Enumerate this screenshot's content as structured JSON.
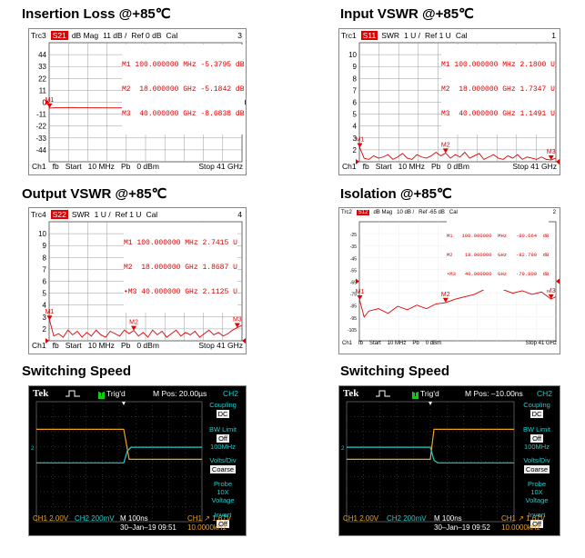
{
  "panels": [
    {
      "id": "il",
      "title": "Insertion Loss @+85℃",
      "trc": "Trc3",
      "sparam": "S21",
      "format": "dB Mag",
      "scale": "11 dB /",
      "ref": "Ref 0 dB",
      "cal": "Cal",
      "index": "3",
      "markers": [
        {
          "name": "M1",
          "freq": "100.000000",
          "unit": "MHz",
          "value": "-5.3795",
          "vunit": "dB"
        },
        {
          "name": "M2",
          "freq": "18.000000",
          "unit": "GHz",
          "value": "-5.1842",
          "vunit": "dB"
        },
        {
          "name": "M3",
          "freq": "40.000000",
          "unit": "GHz",
          "value": "-8.6838",
          "vunit": "dB"
        }
      ],
      "footer_left": [
        "Ch1",
        "fb",
        "Start",
        "10 MHz",
        "Pb",
        "0 dBm"
      ],
      "footer_right": "Stop  41 GHz"
    },
    {
      "id": "ivswr",
      "title": "Input VSWR @+85℃",
      "trc": "Trc1",
      "sparam": "S11",
      "format": "SWR",
      "scale": "1 U /",
      "ref": "Ref 1 U",
      "cal": "Cal",
      "index": "1",
      "markers": [
        {
          "name": "M1",
          "freq": "100.000000",
          "unit": "MHz",
          "value": "2.1800",
          "vunit": "U"
        },
        {
          "name": "M2",
          "freq": "18.000000",
          "unit": "GHz",
          "value": "1.7347",
          "vunit": "U"
        },
        {
          "name": "M3",
          "freq": "40.000000",
          "unit": "GHz",
          "value": "1.1491",
          "vunit": "U"
        }
      ],
      "footer_left": [
        "Ch1",
        "fb",
        "Start",
        "10 MHz",
        "Pb",
        "0 dBm"
      ],
      "footer_right": "Stop  41 GHz"
    },
    {
      "id": "ovswr",
      "title": "Output VSWR @+85℃",
      "trc": "Trc4",
      "sparam": "S22",
      "format": "SWR",
      "scale": "1 U /",
      "ref": "Ref 1 U",
      "cal": "Cal",
      "index": "4",
      "markers": [
        {
          "name": "M1",
          "freq": "100.000000",
          "unit": "MHz",
          "value": "2.7415",
          "vunit": "U"
        },
        {
          "name": "M2",
          "freq": "18.000000",
          "unit": "GHz",
          "value": "1.8687",
          "vunit": "U"
        },
        {
          "name": "•M3",
          "freq": "40.000000",
          "unit": "GHz",
          "value": "2.1125",
          "vunit": "U"
        }
      ],
      "footer_left": [
        "Ch1",
        "fb",
        "Start",
        "10 MHz",
        "Pb",
        "0 dBm"
      ],
      "footer_right": "Stop  41 GHz"
    },
    {
      "id": "iso",
      "title": "Isolation @+85℃",
      "trc": "Trc2",
      "sparam": "S12",
      "format": "dB Mag",
      "scale": "10 dB /",
      "ref": "Ref -65 dB",
      "cal": "Cal",
      "index": "2",
      "markers": [
        {
          "name": "M1",
          "freq": "100.000000",
          "unit": "MHz",
          "value": "-80.664",
          "vunit": "dB"
        },
        {
          "name": "M2",
          "freq": "18.000000",
          "unit": "GHz",
          "value": "-82.790",
          "vunit": "dB"
        },
        {
          "name": "•M3",
          "freq": "40.000000",
          "unit": "GHz",
          "value": "-79.809",
          "vunit": "dB"
        }
      ],
      "footer_left": [
        "Ch1",
        "fb",
        "Start",
        "10 MHz",
        "Pb",
        "0 dBm"
      ],
      "footer_right": "Stop  41 GHz"
    }
  ],
  "chart_data": [
    {
      "type": "line",
      "title": "Insertion Loss @+85℃",
      "xlabel": "",
      "ylabel": "",
      "xlim": [
        0.01,
        41
      ],
      "ylim": [
        -55,
        55
      ],
      "yticks": [
        "44",
        "33",
        "22",
        "11",
        "0",
        "-11",
        "-22",
        "-33",
        "-44"
      ],
      "grid": true,
      "series": [
        {
          "x": [
            0.01,
            2,
            5,
            8,
            12,
            18,
            22,
            26,
            30,
            34,
            38,
            40,
            41
          ],
          "values": [
            -5.4,
            -5.0,
            -4.9,
            -5.1,
            -5.2,
            -5.2,
            -5.6,
            -6.0,
            -6.6,
            -7.2,
            -8.1,
            -8.7,
            -8.8
          ],
          "color": "#e00000"
        }
      ],
      "markers": [
        {
          "label": "M1",
          "x": 0.1,
          "y": -5.38
        },
        {
          "label": "M2",
          "x": 18,
          "y": -5.18
        },
        {
          "label": "M3",
          "x": 40,
          "y": -8.68
        }
      ]
    },
    {
      "type": "line",
      "title": "Input VSWR @+85℃",
      "xlabel": "",
      "ylabel": "",
      "xlim": [
        0.01,
        41
      ],
      "ylim": [
        1,
        11
      ],
      "yticks": [
        "10",
        "9",
        "8",
        "7",
        "6",
        "5",
        "4",
        "3",
        "2"
      ],
      "grid": true,
      "series": [
        {
          "x": [
            0.01,
            0.1,
            1,
            2,
            3,
            4,
            5,
            6,
            7,
            8,
            9,
            10,
            11,
            12,
            13,
            14,
            15,
            16,
            17,
            18,
            19,
            20,
            21,
            22,
            23,
            24,
            25,
            26,
            27,
            28,
            29,
            30,
            31,
            32,
            33,
            34,
            35,
            36,
            37,
            38,
            39,
            40,
            41
          ],
          "values": [
            2.4,
            2.18,
            1.3,
            1.2,
            1.5,
            1.3,
            1.4,
            1.6,
            1.2,
            1.4,
            1.7,
            1.3,
            1.2,
            1.6,
            1.4,
            1.3,
            1.5,
            1.8,
            1.5,
            1.73,
            1.3,
            1.6,
            1.4,
            1.8,
            1.3,
            1.5,
            1.7,
            1.2,
            1.4,
            1.6,
            1.3,
            1.2,
            1.5,
            1.3,
            1.6,
            1.2,
            1.4,
            1.3,
            1.2,
            1.4,
            1.2,
            1.15,
            1.3
          ],
          "color": "#e00000"
        }
      ],
      "markers": [
        {
          "label": "M1",
          "x": 0.1,
          "y": 2.18
        },
        {
          "label": "M2",
          "x": 18,
          "y": 1.73
        },
        {
          "label": "M3",
          "x": 40,
          "y": 1.15
        }
      ]
    },
    {
      "type": "line",
      "title": "Output VSWR @+85℃",
      "xlabel": "",
      "ylabel": "",
      "xlim": [
        0.01,
        41
      ],
      "ylim": [
        1,
        11
      ],
      "yticks": [
        "10",
        "9",
        "8",
        "7",
        "6",
        "5",
        "4",
        "3",
        "2"
      ],
      "grid": true,
      "series": [
        {
          "x": [
            0.01,
            0.1,
            1,
            2,
            3,
            4,
            5,
            6,
            7,
            8,
            9,
            10,
            11,
            12,
            13,
            14,
            15,
            16,
            17,
            18,
            19,
            20,
            21,
            22,
            23,
            24,
            25,
            26,
            27,
            28,
            29,
            30,
            31,
            32,
            33,
            34,
            35,
            36,
            37,
            38,
            39,
            40,
            41
          ],
          "values": [
            3.0,
            2.74,
            1.4,
            1.6,
            1.3,
            1.9,
            1.5,
            1.8,
            1.3,
            1.7,
            1.4,
            1.9,
            1.5,
            1.3,
            1.8,
            1.6,
            1.4,
            1.9,
            1.6,
            1.87,
            1.4,
            1.7,
            1.3,
            1.9,
            1.5,
            1.8,
            1.3,
            1.6,
            1.9,
            1.4,
            1.7,
            1.5,
            1.8,
            1.3,
            1.6,
            1.9,
            1.5,
            1.7,
            1.4,
            1.6,
            1.9,
            2.11,
            2.3
          ],
          "color": "#e00000"
        }
      ],
      "markers": [
        {
          "label": "M1",
          "x": 0.1,
          "y": 2.74
        },
        {
          "label": "M2",
          "x": 18,
          "y": 1.87
        },
        {
          "label": "M3",
          "x": 40,
          "y": 2.11
        }
      ]
    },
    {
      "type": "line",
      "title": "Isolation @+85℃",
      "xlabel": "",
      "ylabel": "",
      "xlim": [
        0.01,
        41
      ],
      "ylim": [
        -115,
        -15
      ],
      "yticks": [
        "-25",
        "-35",
        "-45",
        "-55",
        "-65",
        "-75",
        "-85",
        "-95",
        "-105"
      ],
      "grid": false,
      "series": [
        {
          "x": [
            0.01,
            1,
            2,
            4,
            6,
            8,
            10,
            12,
            14,
            16,
            18,
            20,
            22,
            24,
            26,
            28,
            30,
            32,
            34,
            36,
            38,
            40,
            41
          ],
          "values": [
            -80,
            -95,
            -90,
            -88,
            -92,
            -86,
            -89,
            -85,
            -88,
            -84,
            -83,
            -80,
            -78,
            -76,
            -72,
            -70,
            -72,
            -75,
            -73,
            -76,
            -74,
            -80,
            -78
          ],
          "color": "#e00000"
        }
      ],
      "markers": [
        {
          "label": "M1",
          "x": 0.1,
          "y": -80.66
        },
        {
          "label": "M2",
          "x": 18,
          "y": -82.79
        },
        {
          "label": "M3",
          "x": 40,
          "y": -79.81
        }
      ]
    }
  ],
  "switching": [
    {
      "title": "Switching Speed",
      "tek": "Tek",
      "trig": "Trig'd",
      "trig_badge": "T",
      "mpos": "M Pos: 20.00µs",
      "ch": "CH2",
      "side": [
        {
          "label": "Coupling",
          "value": "DC"
        },
        {
          "label": "BW Limit",
          "value": "Off",
          "sub": "100MHz"
        },
        {
          "label": "Volts/Div",
          "value": "Coarse"
        },
        {
          "label": "Probe",
          "sub": "10X",
          "sub2": "Voltage"
        },
        {
          "label": "Invert",
          "value": "Off"
        }
      ],
      "ch1": "CH1  2.00V",
      "ch2": "CH2  200mV",
      "m": "M 100ns",
      "date": "30–Jan–19 09:51",
      "trig_info": "CH1 ↗ 1.67V",
      "freq": "10.0000kHz",
      "edge": "falling"
    },
    {
      "title": "Switching Speed",
      "tek": "Tek",
      "trig": "Trig'd",
      "trig_badge": "T",
      "mpos": "M Pos: –10.00ns",
      "ch": "CH2",
      "side": [
        {
          "label": "Coupling",
          "value": "DC"
        },
        {
          "label": "BW Limit",
          "value": "Off",
          "sub": "100MHz"
        },
        {
          "label": "Volts/Div",
          "value": "Coarse"
        },
        {
          "label": "Probe",
          "sub": "10X",
          "sub2": "Voltage"
        },
        {
          "label": "Invert",
          "value": "Off"
        }
      ],
      "ch1": "CH1  2.00V",
      "ch2": "CH2  200mV",
      "m": "M 100ns",
      "date": "30–Jan–19 09:52",
      "trig_info": "CH1 ↗ 1.67V",
      "freq": "10.0000kHz",
      "edge": "rising"
    }
  ]
}
